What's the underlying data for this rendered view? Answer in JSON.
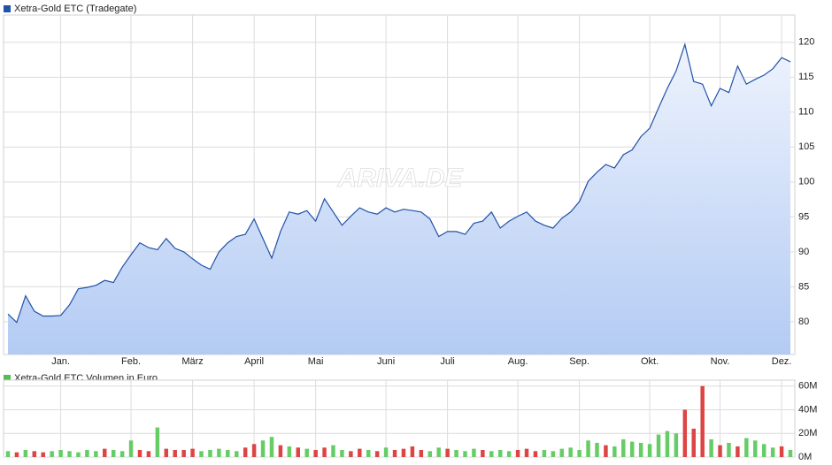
{
  "chart_data": [
    {
      "type": "area",
      "title": "Xetra-Gold ETC (Tradegate)",
      "watermark": "ARIVA.DE",
      "color": "#2252a8",
      "legend_color": "#2252a8",
      "categories": [
        null,
        null,
        null,
        null,
        null,
        null,
        "Jan.",
        null,
        null,
        null,
        null,
        null,
        null,
        null,
        "Feb.",
        null,
        null,
        null,
        null,
        null,
        null,
        "März",
        null,
        null,
        null,
        null,
        null,
        null,
        "April",
        null,
        null,
        null,
        null,
        null,
        null,
        "Mai",
        null,
        null,
        null,
        null,
        null,
        null,
        null,
        "Juni",
        null,
        null,
        null,
        null,
        null,
        null,
        "Juli",
        null,
        null,
        null,
        null,
        null,
        null,
        null,
        "Aug.",
        null,
        null,
        null,
        null,
        null,
        null,
        "Sep.",
        null,
        null,
        null,
        null,
        null,
        null,
        null,
        "Okt.",
        null,
        null,
        null,
        null,
        null,
        null,
        null,
        "Nov.",
        null,
        null,
        null,
        null,
        null,
        null,
        "Dez.",
        null
      ],
      "values": [
        81.1,
        79.9,
        83.7,
        81.5,
        80.8,
        80.8,
        80.9,
        82.4,
        84.7,
        84.9,
        85.2,
        85.9,
        85.6,
        87.8,
        89.6,
        91.3,
        90.6,
        90.3,
        91.9,
        90.5,
        90,
        89,
        88.1,
        87.5,
        90,
        91.3,
        92.2,
        92.5,
        94.7,
        91.9,
        89.1,
        92.9,
        95.7,
        95.4,
        95.9,
        94.4,
        97.6,
        95.7,
        93.8,
        95.1,
        96.3,
        95.7,
        95.4,
        96.3,
        95.7,
        96.1,
        95.9,
        95.7,
        94.7,
        92.2,
        92.9,
        92.9,
        92.5,
        94.1,
        94.4,
        95.7,
        93.4,
        94.4,
        95.1,
        95.7,
        94.4,
        93.8,
        93.4,
        94.8,
        95.7,
        97.2,
        100.1,
        101.4,
        102.5,
        102,
        103.9,
        104.6,
        106.5,
        107.7,
        110.6,
        113.4,
        115.9,
        119.7,
        114.4,
        114,
        110.9,
        113.4,
        112.8,
        116.6,
        114,
        114.7,
        115.3,
        116.2,
        117.8,
        117.2
      ],
      "ylim": [
        75.3,
        123.9
      ],
      "yticks": [
        80,
        85,
        90,
        95,
        100,
        105,
        110,
        115,
        120
      ],
      "grid": true
    },
    {
      "type": "bar",
      "title": "Xetra-Gold ETC Volumen in Euro",
      "legend_color": "#55bb55",
      "values": [
        5,
        4,
        6,
        5,
        4,
        5,
        6,
        5,
        4,
        6,
        5,
        7,
        6,
        5,
        14,
        6,
        5,
        25,
        7,
        6,
        6,
        7,
        5,
        6,
        7,
        6,
        5,
        8,
        11,
        14,
        17,
        10,
        9,
        8,
        7,
        6,
        8,
        10,
        6,
        5,
        7,
        6,
        5,
        8,
        6,
        7,
        9,
        6,
        5,
        8,
        7,
        6,
        5,
        7,
        6,
        5,
        6,
        5,
        6,
        7,
        5,
        6,
        5,
        7,
        8,
        6,
        14,
        12,
        10,
        9,
        15,
        13,
        12,
        11,
        19,
        22,
        20,
        40,
        24,
        60,
        15,
        10,
        12,
        9,
        16,
        14,
        11,
        8,
        9,
        6
      ],
      "colors": [
        "#66cc66",
        "#dd4444",
        "#66cc66",
        "#dd4444",
        "#dd4444",
        "#66cc66",
        "#66cc66",
        "#66cc66",
        "#66cc66",
        "#66cc66",
        "#66cc66",
        "#dd4444",
        "#66cc66",
        "#66cc66",
        "#66cc66",
        "#dd4444",
        "#dd4444",
        "#66cc66",
        "#dd4444",
        "#dd4444",
        "#dd4444",
        "#dd4444",
        "#66cc66",
        "#66cc66",
        "#66cc66",
        "#66cc66",
        "#66cc66",
        "#dd4444",
        "#dd4444",
        "#66cc66",
        "#66cc66",
        "#dd4444",
        "#66cc66",
        "#dd4444",
        "#66cc66",
        "#dd4444",
        "#dd4444",
        "#66cc66",
        "#66cc66",
        "#dd4444",
        "#dd4444",
        "#66cc66",
        "#dd4444",
        "#66cc66",
        "#dd4444",
        "#dd4444",
        "#dd4444",
        "#dd4444",
        "#66cc66",
        "#66cc66",
        "#dd4444",
        "#66cc66",
        "#66cc66",
        "#66cc66",
        "#dd4444",
        "#66cc66",
        "#66cc66",
        "#66cc66",
        "#dd4444",
        "#dd4444",
        "#dd4444",
        "#66cc66",
        "#66cc66",
        "#66cc66",
        "#66cc66",
        "#66cc66",
        "#66cc66",
        "#66cc66",
        "#dd4444",
        "#66cc66",
        "#66cc66",
        "#66cc66",
        "#66cc66",
        "#66cc66",
        "#66cc66",
        "#66cc66",
        "#66cc66",
        "#dd4444",
        "#dd4444",
        "#dd4444",
        "#66cc66",
        "#dd4444",
        "#66cc66",
        "#dd4444",
        "#66cc66",
        "#66cc66",
        "#66cc66",
        "#66cc66",
        "#dd4444",
        "#66cc66"
      ],
      "ylim": [
        0,
        65
      ],
      "yticks": [
        {
          "value": 0,
          "label": "0M"
        },
        {
          "value": 20,
          "label": "20M"
        },
        {
          "value": 40,
          "label": "40M"
        },
        {
          "value": 60,
          "label": "60M"
        }
      ],
      "grid": true
    }
  ]
}
